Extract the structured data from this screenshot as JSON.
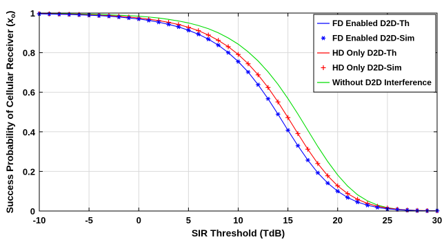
{
  "chart_data": {
    "type": "line",
    "xlabel": "SIR Threshold (TdB)",
    "ylabel_main": "Success Probability of Cellular Receiver (",
    "ylabel_var": "x",
    "ylabel_sub": "o",
    "ylabel_end": ")",
    "xlim": [
      -10,
      30
    ],
    "ylim": [
      0,
      1
    ],
    "xticks": [
      -10,
      -5,
      0,
      5,
      10,
      15,
      20,
      25,
      30
    ],
    "yticks": [
      0,
      0.2,
      0.4,
      0.6,
      0.8,
      1
    ],
    "xtick_labels": [
      "-10",
      "-5",
      "0",
      "5",
      "10",
      "15",
      "20",
      "25",
      "30"
    ],
    "ytick_labels": [
      "0",
      "0.2",
      "0.4",
      "0.6",
      "0.8",
      "1"
    ],
    "grid": true,
    "legend_position": "top-right",
    "series": [
      {
        "name": "FD Enabled D2D-Th",
        "style": "line",
        "color": "#0000ff",
        "x": [
          -10,
          -9,
          -8,
          -7,
          -6,
          -5,
          -4,
          -3,
          -2,
          -1,
          0,
          1,
          2,
          3,
          4,
          5,
          6,
          7,
          8,
          9,
          10,
          11,
          12,
          13,
          14,
          15,
          16,
          17,
          18,
          19,
          20,
          21,
          22,
          23,
          24,
          25,
          26,
          27,
          28,
          29,
          30
        ],
        "y": [
          0.996,
          0.995,
          0.994,
          0.993,
          0.991,
          0.989,
          0.987,
          0.984,
          0.98,
          0.975,
          0.97,
          0.963,
          0.954,
          0.943,
          0.93,
          0.913,
          0.893,
          0.868,
          0.838,
          0.8,
          0.755,
          0.702,
          0.638,
          0.567,
          0.489,
          0.408,
          0.33,
          0.257,
          0.193,
          0.141,
          0.1,
          0.068,
          0.045,
          0.029,
          0.018,
          0.011,
          0.007,
          0.004,
          0.002,
          0.001,
          0.001
        ]
      },
      {
        "name": "FD Enabled D2D-Sim",
        "style": "marker",
        "marker": "asterisk",
        "color": "#0000ff",
        "x": [
          -10,
          -9,
          -8,
          -7,
          -6,
          -5,
          -4,
          -3,
          -2,
          -1,
          0,
          1,
          2,
          3,
          4,
          5,
          6,
          7,
          8,
          9,
          10,
          11,
          12,
          13,
          14,
          15,
          16,
          17,
          18,
          19,
          20,
          21,
          22,
          23,
          24,
          25,
          26,
          27,
          28,
          29,
          30
        ],
        "y": [
          0.996,
          0.995,
          0.994,
          0.993,
          0.991,
          0.989,
          0.987,
          0.984,
          0.98,
          0.975,
          0.97,
          0.963,
          0.954,
          0.943,
          0.93,
          0.913,
          0.893,
          0.868,
          0.838,
          0.8,
          0.755,
          0.702,
          0.638,
          0.567,
          0.489,
          0.408,
          0.33,
          0.257,
          0.193,
          0.141,
          0.1,
          0.068,
          0.045,
          0.029,
          0.018,
          0.011,
          0.007,
          0.004,
          0.002,
          0.001,
          0.001
        ]
      },
      {
        "name": "HD Only D2D-Th",
        "style": "line",
        "color": "#ff0000",
        "x": [
          -10,
          -9,
          -8,
          -7,
          -6,
          -5,
          -4,
          -3,
          -2,
          -1,
          0,
          1,
          2,
          3,
          4,
          5,
          6,
          7,
          8,
          9,
          10,
          11,
          12,
          13,
          14,
          15,
          16,
          17,
          18,
          19,
          20,
          21,
          22,
          23,
          24,
          25,
          26,
          27,
          28,
          29,
          30
        ],
        "y": [
          0.997,
          0.996,
          0.995,
          0.994,
          0.993,
          0.991,
          0.989,
          0.987,
          0.984,
          0.98,
          0.975,
          0.969,
          0.962,
          0.953,
          0.942,
          0.928,
          0.911,
          0.889,
          0.862,
          0.83,
          0.791,
          0.744,
          0.688,
          0.624,
          0.551,
          0.472,
          0.391,
          0.312,
          0.24,
          0.178,
          0.127,
          0.088,
          0.059,
          0.038,
          0.024,
          0.015,
          0.009,
          0.005,
          0.003,
          0.002,
          0.001
        ]
      },
      {
        "name": "HD Only D2D-Sim",
        "style": "marker",
        "marker": "plus",
        "color": "#ff0000",
        "x": [
          -10,
          -9,
          -8,
          -7,
          -6,
          -5,
          -4,
          -3,
          -2,
          -1,
          0,
          1,
          2,
          3,
          4,
          5,
          6,
          7,
          8,
          9,
          10,
          11,
          12,
          13,
          14,
          15,
          16,
          17,
          18,
          19,
          20,
          21,
          22,
          23,
          24,
          25,
          26,
          27,
          28,
          29,
          30
        ],
        "y": [
          0.997,
          0.996,
          0.995,
          0.994,
          0.993,
          0.991,
          0.989,
          0.987,
          0.984,
          0.98,
          0.975,
          0.969,
          0.962,
          0.953,
          0.942,
          0.928,
          0.911,
          0.889,
          0.862,
          0.83,
          0.791,
          0.744,
          0.688,
          0.624,
          0.551,
          0.472,
          0.391,
          0.312,
          0.24,
          0.178,
          0.127,
          0.088,
          0.059,
          0.038,
          0.024,
          0.015,
          0.009,
          0.005,
          0.003,
          0.002,
          0.001
        ]
      },
      {
        "name": "Without D2D Interference",
        "style": "line",
        "color": "#00dd00",
        "x": [
          -10,
          -9,
          -8,
          -7,
          -6,
          -5,
          -4,
          -3,
          -2,
          -1,
          0,
          1,
          2,
          3,
          4,
          5,
          6,
          7,
          8,
          9,
          10,
          11,
          12,
          13,
          14,
          15,
          16,
          17,
          18,
          19,
          20,
          21,
          22,
          23,
          24,
          25,
          26,
          27,
          28,
          29,
          30
        ],
        "y": [
          0.998,
          0.997,
          0.997,
          0.996,
          0.995,
          0.994,
          0.993,
          0.991,
          0.989,
          0.987,
          0.984,
          0.98,
          0.975,
          0.968,
          0.96,
          0.95,
          0.937,
          0.921,
          0.9,
          0.874,
          0.843,
          0.804,
          0.758,
          0.703,
          0.64,
          0.568,
          0.49,
          0.408,
          0.326,
          0.25,
          0.182,
          0.126,
          0.082,
          0.051,
          0.03,
          0.017,
          0.009,
          0.005,
          0.003,
          0.001,
          0.001
        ]
      }
    ]
  },
  "colors": {
    "axis": "#000000",
    "grid": "#d9d9d9",
    "fd": "#0000ff",
    "hd": "#ff0000",
    "without": "#00dd00"
  }
}
